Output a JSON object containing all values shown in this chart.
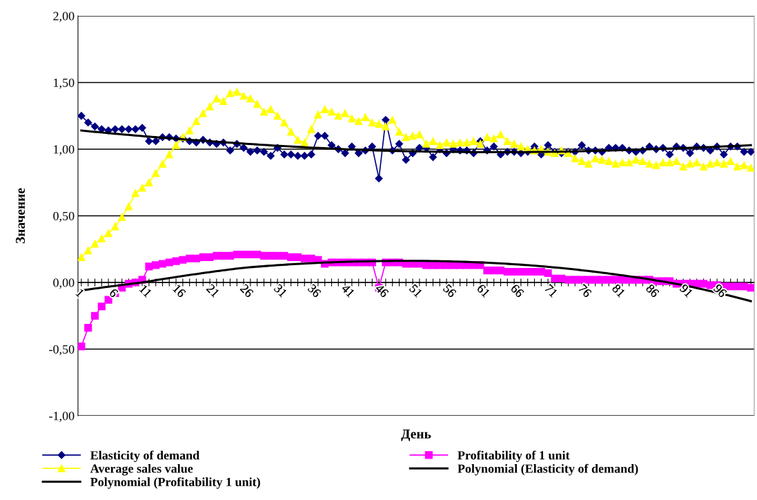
{
  "chart_data": {
    "type": "line",
    "xlabel": "День",
    "ylabel": "Значение",
    "categories": [
      "1",
      null,
      null,
      null,
      null,
      "6",
      null,
      null,
      null,
      null,
      "11",
      null,
      null,
      null,
      null,
      "16",
      null,
      null,
      null,
      null,
      "21",
      null,
      null,
      null,
      null,
      "26",
      null,
      null,
      null,
      null,
      "31",
      null,
      null,
      null,
      null,
      "36",
      null,
      null,
      null,
      null,
      "41",
      null,
      null,
      null,
      null,
      "46",
      null,
      null,
      null,
      null,
      "51",
      null,
      null,
      null,
      null,
      "56",
      null,
      null,
      null,
      null,
      "61",
      null,
      null,
      null,
      null,
      "66",
      null,
      null,
      null,
      null,
      "71",
      null,
      null,
      null,
      null,
      "76",
      null,
      null,
      null,
      null,
      "81",
      null,
      null,
      null,
      null,
      "86",
      null,
      null,
      null,
      null,
      "91",
      null,
      null,
      null,
      null,
      "96",
      null,
      null,
      null,
      null
    ],
    "ylim": [
      -1.0,
      2.0
    ],
    "yticks": [
      {
        "value": -1.0,
        "label": "-1,00"
      },
      {
        "value": -0.5,
        "label": "-0,50"
      },
      {
        "value": 0.0,
        "label": "0,00"
      },
      {
        "value": 0.5,
        "label": "0,50"
      },
      {
        "value": 1.0,
        "label": "1,00"
      },
      {
        "value": 1.5,
        "label": "1,50"
      },
      {
        "value": 2.0,
        "label": "2,00"
      }
    ],
    "grid": "y",
    "legend": "bottom",
    "series": [
      {
        "name": "Elasticity of demand",
        "color": "#000080",
        "marker": "diamond",
        "values": [
          1.25,
          1.2,
          1.17,
          1.15,
          1.14,
          1.15,
          1.15,
          1.15,
          1.15,
          1.16,
          1.06,
          1.06,
          1.09,
          1.09,
          1.08,
          1.08,
          1.06,
          1.05,
          1.07,
          1.05,
          1.04,
          1.05,
          0.99,
          1.04,
          1.01,
          0.98,
          0.99,
          0.98,
          0.95,
          1.01,
          0.96,
          0.96,
          0.95,
          0.95,
          0.96,
          1.1,
          1.1,
          1.03,
          1.0,
          0.97,
          1.02,
          0.97,
          0.99,
          1.02,
          0.78,
          1.22,
          0.99,
          1.04,
          0.92,
          0.97,
          1.01,
          1.01,
          0.94,
          1.0,
          0.97,
          1.0,
          0.99,
          0.99,
          0.97,
          1.06,
          0.99,
          1.02,
          0.96,
          0.98,
          0.98,
          0.97,
          0.98,
          1.02,
          0.96,
          1.03,
          0.98,
          0.97,
          0.98,
          0.98,
          1.03,
          0.99,
          0.99,
          0.98,
          1.01,
          1.01,
          1.01,
          0.99,
          0.98,
          0.99,
          1.02,
          1.0,
          1.01,
          0.96,
          1.02,
          1.01,
          0.97,
          1.02,
          1.01,
          0.99,
          1.02,
          0.96,
          1.02,
          1.02,
          0.98,
          0.98
        ]
      },
      {
        "name": "Average sales value",
        "color": "#ffff00",
        "marker": "triangle",
        "values": [
          0.19,
          0.24,
          0.29,
          0.33,
          0.37,
          0.42,
          0.49,
          0.57,
          0.67,
          0.71,
          0.75,
          0.82,
          0.89,
          0.96,
          1.03,
          1.09,
          1.14,
          1.21,
          1.27,
          1.32,
          1.38,
          1.36,
          1.42,
          1.43,
          1.4,
          1.38,
          1.34,
          1.28,
          1.3,
          1.25,
          1.2,
          1.13,
          1.07,
          1.05,
          1.15,
          1.26,
          1.3,
          1.28,
          1.25,
          1.27,
          1.23,
          1.21,
          1.24,
          1.2,
          1.19,
          1.17,
          1.22,
          1.13,
          1.09,
          1.1,
          1.11,
          1.04,
          1.06,
          1.03,
          1.05,
          1.04,
          1.05,
          1.05,
          1.06,
          1.04,
          1.09,
          1.08,
          1.11,
          1.06,
          1.04,
          1.02,
          1.0,
          0.99,
          1.0,
          0.98,
          0.97,
          0.99,
          0.97,
          0.93,
          0.91,
          0.89,
          0.93,
          0.92,
          0.91,
          0.89,
          0.9,
          0.9,
          0.92,
          0.91,
          0.89,
          0.88,
          0.9,
          0.9,
          0.91,
          0.87,
          0.89,
          0.9,
          0.87,
          0.89,
          0.9,
          0.89,
          0.91,
          0.87,
          0.88,
          0.86
        ]
      },
      {
        "name": "Polynomial (Profitability 1 unit)",
        "color": "#000000",
        "marker": "none",
        "values": [
          -0.06,
          null,
          null,
          null,
          null,
          null,
          null,
          null,
          null,
          0.0,
          null,
          null,
          null,
          null,
          null,
          null,
          null,
          null,
          null,
          null,
          null,
          null,
          null,
          null,
          0.11,
          null,
          null,
          null,
          null,
          null,
          null,
          null,
          null,
          null,
          null,
          null,
          null,
          null,
          null,
          null,
          null,
          null,
          null,
          null,
          0.16,
          null,
          null,
          null,
          null,
          null,
          null,
          null,
          null,
          null,
          null,
          null,
          null,
          null,
          null,
          0.15,
          null,
          null,
          null,
          null,
          null,
          null,
          null,
          null,
          null,
          null,
          null,
          null,
          null,
          null,
          null,
          null,
          null,
          null,
          null,
          0.06,
          null,
          null,
          null,
          null,
          null,
          null,
          null,
          null,
          null,
          -0.02,
          null,
          null,
          null,
          null,
          null,
          null,
          null,
          null,
          null,
          -0.14
        ]
      },
      {
        "name": "Profitability of 1 unit",
        "color": "#ff00ff",
        "marker": "square",
        "values": [
          -0.48,
          -0.34,
          -0.25,
          -0.18,
          -0.13,
          -0.08,
          -0.04,
          -0.01,
          0.0,
          0.02,
          0.12,
          0.13,
          0.14,
          0.15,
          0.16,
          0.17,
          0.18,
          0.18,
          0.19,
          0.19,
          0.2,
          0.2,
          0.2,
          0.21,
          0.21,
          0.21,
          0.21,
          0.2,
          0.2,
          0.2,
          0.2,
          0.19,
          0.19,
          0.18,
          0.18,
          0.17,
          0.14,
          0.15,
          0.15,
          0.15,
          0.15,
          0.15,
          0.15,
          0.15,
          -0.04,
          0.15,
          0.15,
          0.15,
          0.14,
          0.14,
          0.14,
          0.13,
          0.13,
          0.13,
          0.13,
          0.13,
          0.13,
          0.13,
          0.13,
          0.13,
          0.09,
          0.09,
          0.09,
          0.08,
          0.08,
          0.08,
          0.08,
          0.08,
          0.08,
          0.07,
          0.03,
          0.03,
          0.02,
          0.02,
          0.02,
          0.02,
          0.02,
          0.02,
          0.02,
          0.02,
          0.02,
          0.02,
          0.02,
          0.02,
          0.02,
          0.01,
          0.01,
          0.01,
          -0.01,
          -0.01,
          -0.01,
          -0.01,
          -0.01,
          -0.02,
          -0.02,
          -0.03,
          -0.03,
          -0.03,
          -0.03,
          -0.04
        ]
      },
      {
        "name": "Polynomial (Elasticity of demand)",
        "color": "#000000",
        "marker": "none",
        "values": [
          1.14,
          null,
          null,
          null,
          null,
          null,
          null,
          null,
          null,
          null,
          null,
          null,
          null,
          null,
          null,
          null,
          null,
          null,
          null,
          1.06,
          null,
          null,
          null,
          null,
          null,
          null,
          null,
          null,
          null,
          null,
          null,
          null,
          null,
          null,
          null,
          null,
          null,
          null,
          null,
          null,
          null,
          null,
          null,
          null,
          0.99,
          null,
          null,
          null,
          null,
          null,
          null,
          null,
          null,
          null,
          null,
          null,
          null,
          null,
          null,
          null,
          null,
          null,
          null,
          null,
          null,
          null,
          null,
          null,
          null,
          0.98,
          null,
          null,
          null,
          null,
          null,
          null,
          null,
          null,
          null,
          null,
          null,
          null,
          null,
          null,
          1.0,
          null,
          null,
          null,
          null,
          null,
          null,
          null,
          null,
          null,
          null,
          null,
          null,
          null,
          null,
          1.03
        ]
      }
    ]
  }
}
